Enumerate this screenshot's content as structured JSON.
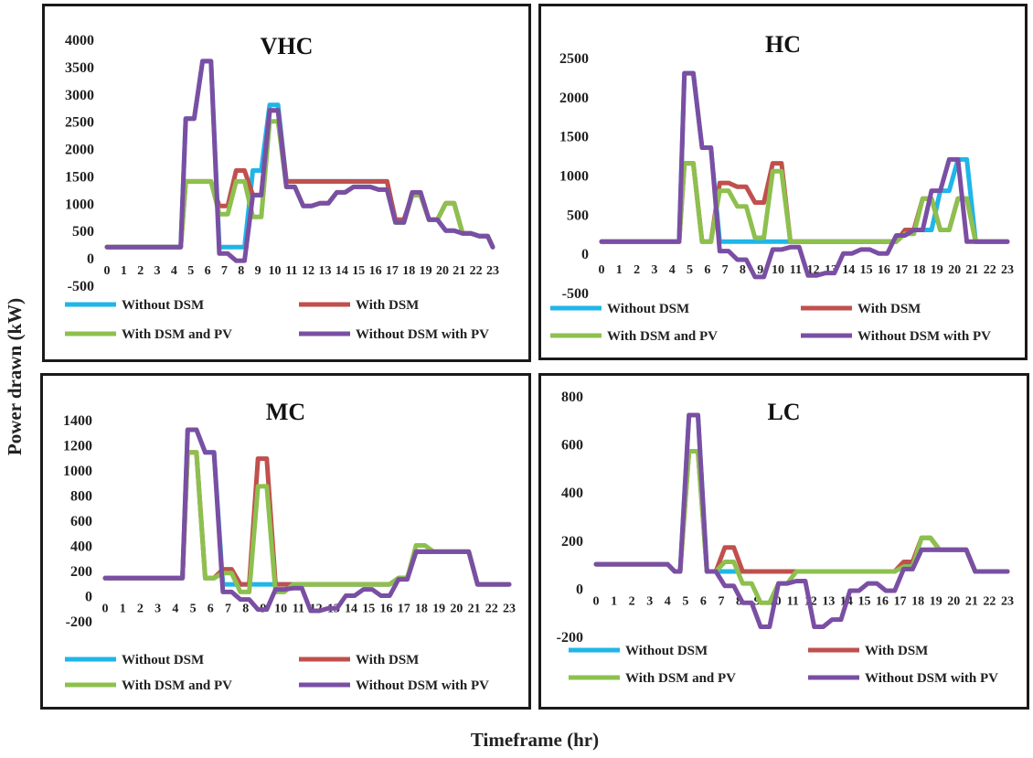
{
  "y_axis_title": "Power drawn (kW)",
  "x_axis_title": "Timeframe (hr)",
  "series_styles": [
    {
      "name": "Without DSM",
      "color": "#1fb6e8"
    },
    {
      "name": "With DSM",
      "color": "#c0504d"
    },
    {
      "name": "With DSM and PV",
      "color": "#8dc04e"
    },
    {
      "name": "Without DSM with PV",
      "color": "#7a4fa3"
    }
  ],
  "chart_data": [
    {
      "type": "line",
      "title": "VHC",
      "x": [
        0,
        1,
        2,
        3,
        4,
        4.4,
        4.7,
        5.2,
        5.7,
        6.2,
        6.7,
        7.2,
        7.7,
        8.2,
        8.7,
        9.2,
        9.7,
        10.2,
        10.7,
        11.2,
        11.7,
        12.2,
        12.7,
        13.2,
        13.7,
        14.2,
        14.7,
        15.2,
        15.7,
        16.2,
        16.7,
        17.2,
        17.7,
        18.2,
        18.7,
        19.2,
        19.7,
        20.2,
        20.7,
        21.2,
        21.7,
        22.2,
        22.7,
        23
      ],
      "x_ticks": [
        0,
        1,
        2,
        3,
        4,
        5,
        6,
        7,
        8,
        9,
        10,
        11,
        12,
        13,
        14,
        15,
        16,
        17,
        18,
        19,
        20,
        21,
        22,
        23
      ],
      "ylim": [
        -500,
        4000
      ],
      "y_ticks": [
        -500,
        0,
        500,
        1000,
        1500,
        2000,
        2500,
        3000,
        3500,
        4000
      ],
      "series": [
        {
          "name": "Without DSM",
          "values": [
            200,
            200,
            200,
            200,
            200,
            200,
            2550,
            2550,
            3600,
            3600,
            200,
            200,
            200,
            200,
            1600,
            1600,
            2800,
            2800,
            1400,
            1400,
            1400,
            1400,
            1400,
            1400,
            1400,
            1400,
            1400,
            1400,
            1400,
            1400,
            1400,
            650,
            650,
            1150,
            1150,
            700,
            700,
            500,
            500,
            450,
            450,
            400,
            400,
            200
          ]
        },
        {
          "name": "With DSM",
          "values": [
            200,
            200,
            200,
            200,
            200,
            200,
            1400,
            1400,
            1400,
            1400,
            950,
            950,
            1600,
            1600,
            1150,
            1150,
            2700,
            2700,
            1400,
            1400,
            1400,
            1400,
            1400,
            1400,
            1400,
            1400,
            1400,
            1400,
            1400,
            1400,
            1400,
            700,
            700,
            1150,
            1150,
            700,
            700,
            1000,
            1000,
            450,
            450,
            400,
            400,
            200
          ]
        },
        {
          "name": "With DSM and PV",
          "values": [
            200,
            200,
            200,
            200,
            200,
            200,
            1400,
            1400,
            1400,
            1400,
            800,
            800,
            1400,
            1400,
            750,
            750,
            2500,
            2500,
            1300,
            1300,
            950,
            950,
            1000,
            1000,
            1200,
            1200,
            1300,
            1300,
            1300,
            1250,
            1250,
            650,
            650,
            1150,
            1150,
            700,
            700,
            1000,
            1000,
            450,
            450,
            400,
            400,
            200
          ]
        },
        {
          "name": "Without DSM with PV",
          "values": [
            200,
            200,
            200,
            200,
            200,
            200,
            2550,
            2550,
            3600,
            3600,
            80,
            80,
            -50,
            -50,
            1150,
            1150,
            2700,
            2700,
            1300,
            1300,
            950,
            950,
            1000,
            1000,
            1200,
            1200,
            1300,
            1300,
            1300,
            1250,
            1250,
            650,
            650,
            1200,
            1200,
            700,
            700,
            500,
            500,
            450,
            450,
            400,
            400,
            200
          ]
        }
      ],
      "legend": [
        "Without DSM",
        "With DSM",
        "With DSM and PV",
        "Without DSM with PV"
      ]
    },
    {
      "type": "line",
      "title": "HC",
      "x": [
        0,
        1,
        2,
        3,
        4,
        4.4,
        4.7,
        5.2,
        5.7,
        6.2,
        6.7,
        7.2,
        7.7,
        8.2,
        8.7,
        9.2,
        9.7,
        10.2,
        10.7,
        11.2,
        11.7,
        12.2,
        12.7,
        13.2,
        13.7,
        14.2,
        14.7,
        15.2,
        15.7,
        16.2,
        16.7,
        17.2,
        17.7,
        18.2,
        18.7,
        19.2,
        19.7,
        20.2,
        20.7,
        21.2,
        21.7,
        22.2,
        22.7,
        23
      ],
      "x_ticks": [
        0,
        1,
        2,
        3,
        4,
        5,
        6,
        7,
        8,
        9,
        10,
        11,
        12,
        13,
        14,
        15,
        16,
        17,
        18,
        19,
        20,
        21,
        22,
        23
      ],
      "ylim": [
        -500,
        2500
      ],
      "y_ticks": [
        -500,
        0,
        500,
        1000,
        1500,
        2000,
        2500
      ],
      "series": [
        {
          "name": "Without DSM",
          "values": [
            150,
            150,
            150,
            150,
            150,
            150,
            2300,
            2300,
            1350,
            1350,
            150,
            150,
            150,
            150,
            150,
            150,
            150,
            150,
            150,
            150,
            150,
            150,
            150,
            150,
            150,
            150,
            150,
            150,
            150,
            150,
            150,
            300,
            300,
            300,
            300,
            800,
            800,
            1200,
            1200,
            150,
            150,
            150,
            150,
            150
          ]
        },
        {
          "name": "With DSM",
          "values": [
            150,
            150,
            150,
            150,
            150,
            150,
            1150,
            1150,
            150,
            150,
            900,
            900,
            850,
            850,
            650,
            650,
            1150,
            1150,
            150,
            150,
            150,
            150,
            150,
            150,
            150,
            150,
            150,
            150,
            150,
            150,
            150,
            300,
            300,
            700,
            700,
            300,
            300,
            700,
            700,
            150,
            150,
            150,
            150,
            150
          ]
        },
        {
          "name": "With DSM and PV",
          "values": [
            150,
            150,
            150,
            150,
            150,
            150,
            1150,
            1150,
            150,
            150,
            800,
            800,
            600,
            600,
            200,
            200,
            1050,
            1050,
            150,
            150,
            150,
            150,
            150,
            150,
            150,
            150,
            150,
            150,
            150,
            150,
            150,
            250,
            250,
            700,
            700,
            300,
            300,
            700,
            700,
            150,
            150,
            150,
            150,
            150
          ]
        },
        {
          "name": "Without DSM with PV",
          "values": [
            150,
            150,
            150,
            150,
            150,
            150,
            2300,
            2300,
            1350,
            1350,
            30,
            30,
            -80,
            -80,
            -300,
            -300,
            50,
            50,
            80,
            80,
            -280,
            -280,
            -250,
            -250,
            0,
            0,
            50,
            50,
            0,
            0,
            230,
            230,
            300,
            300,
            800,
            800,
            1200,
            1200,
            150,
            150,
            150,
            150,
            150,
            150
          ]
        }
      ],
      "legend": [
        "Without DSM",
        "With DSM",
        "With DSM and PV",
        "Without DSM with PV"
      ]
    },
    {
      "type": "line",
      "title": "MC",
      "x": [
        0,
        1,
        2,
        3,
        4,
        4.4,
        4.7,
        5.2,
        5.7,
        6.2,
        6.7,
        7.2,
        7.7,
        8.2,
        8.7,
        9.2,
        9.7,
        10.2,
        10.7,
        11.2,
        11.7,
        12.2,
        12.7,
        13.2,
        13.7,
        14.2,
        14.7,
        15.2,
        15.7,
        16.2,
        16.7,
        17.2,
        17.7,
        18.2,
        18.7,
        19.2,
        19.7,
        20.2,
        20.7,
        21.2,
        21.7,
        22.2,
        22.7,
        23
      ],
      "x_ticks": [
        0,
        1,
        2,
        3,
        4,
        5,
        6,
        7,
        8,
        9,
        10,
        11,
        12,
        13,
        14,
        15,
        16,
        17,
        18,
        19,
        20,
        21,
        22,
        23
      ],
      "ylim": [
        -200,
        1400
      ],
      "y_ticks": [
        -200,
        0,
        200,
        400,
        600,
        800,
        1000,
        1200,
        1400
      ],
      "series": [
        {
          "name": "Without DSM",
          "values": [
            140,
            140,
            140,
            140,
            140,
            140,
            1320,
            1320,
            1140,
            1140,
            90,
            90,
            90,
            90,
            90,
            90,
            90,
            90,
            90,
            90,
            90,
            90,
            90,
            90,
            90,
            90,
            90,
            90,
            90,
            90,
            140,
            140,
            350,
            350,
            350,
            350,
            350,
            350,
            350,
            90,
            90,
            90,
            90,
            90
          ]
        },
        {
          "name": "With DSM",
          "values": [
            140,
            140,
            140,
            140,
            140,
            140,
            1140,
            1140,
            140,
            140,
            210,
            210,
            90,
            90,
            1090,
            1090,
            90,
            90,
            90,
            90,
            90,
            90,
            90,
            90,
            90,
            90,
            90,
            90,
            90,
            90,
            140,
            140,
            350,
            350,
            350,
            350,
            350,
            350,
            350,
            90,
            90,
            90,
            90,
            90
          ]
        },
        {
          "name": "With DSM and PV",
          "values": [
            140,
            140,
            140,
            140,
            140,
            140,
            1140,
            1140,
            140,
            140,
            180,
            180,
            30,
            30,
            870,
            870,
            30,
            30,
            90,
            90,
            90,
            90,
            90,
            90,
            90,
            90,
            90,
            90,
            90,
            90,
            140,
            140,
            400,
            400,
            350,
            350,
            350,
            350,
            350,
            90,
            90,
            90,
            90,
            90
          ]
        },
        {
          "name": "Without DSM with PV",
          "values": [
            140,
            140,
            140,
            140,
            140,
            140,
            1320,
            1320,
            1140,
            1140,
            30,
            30,
            -30,
            -30,
            -110,
            -110,
            50,
            50,
            60,
            60,
            -120,
            -120,
            -100,
            -100,
            0,
            0,
            50,
            50,
            0,
            0,
            130,
            130,
            350,
            350,
            350,
            350,
            350,
            350,
            350,
            90,
            90,
            90,
            90,
            90
          ]
        }
      ],
      "legend": [
        "Without DSM",
        "With DSM",
        "With DSM and PV",
        "Without DSM with PV"
      ]
    },
    {
      "type": "line",
      "title": "LC",
      "x": [
        0,
        1,
        2,
        3,
        4,
        4.4,
        4.7,
        5.2,
        5.7,
        6.2,
        6.7,
        7.2,
        7.7,
        8.2,
        8.7,
        9.2,
        9.7,
        10.2,
        10.7,
        11.2,
        11.7,
        12.2,
        12.7,
        13.2,
        13.7,
        14.2,
        14.7,
        15.2,
        15.7,
        16.2,
        16.7,
        17.2,
        17.7,
        18.2,
        18.7,
        19.2,
        19.7,
        20.2,
        20.7,
        21.2,
        21.7,
        22.2,
        22.7,
        23
      ],
      "x_ticks": [
        0,
        1,
        2,
        3,
        4,
        5,
        6,
        7,
        8,
        9,
        10,
        11,
        12,
        13,
        14,
        15,
        16,
        17,
        18,
        19,
        20,
        21,
        22,
        23
      ],
      "ylim": [
        -200,
        800
      ],
      "y_ticks": [
        -200,
        0,
        200,
        400,
        600,
        800
      ],
      "series": [
        {
          "name": "Without DSM",
          "values": [
            100,
            100,
            100,
            100,
            100,
            70,
            70,
            720,
            720,
            70,
            70,
            70,
            70,
            70,
            70,
            70,
            70,
            70,
            70,
            70,
            70,
            70,
            70,
            70,
            70,
            70,
            70,
            70,
            70,
            70,
            70,
            100,
            100,
            160,
            160,
            160,
            160,
            160,
            160,
            70,
            70,
            70,
            70,
            70
          ]
        },
        {
          "name": "With DSM",
          "values": [
            100,
            100,
            100,
            100,
            100,
            70,
            70,
            570,
            570,
            70,
            70,
            170,
            170,
            70,
            70,
            70,
            70,
            70,
            70,
            70,
            70,
            70,
            70,
            70,
            70,
            70,
            70,
            70,
            70,
            70,
            70,
            110,
            110,
            210,
            210,
            160,
            160,
            160,
            160,
            70,
            70,
            70,
            70,
            70
          ]
        },
        {
          "name": "With DSM and PV",
          "values": [
            100,
            100,
            100,
            100,
            100,
            70,
            70,
            570,
            570,
            70,
            70,
            110,
            110,
            20,
            20,
            -60,
            -60,
            20,
            20,
            70,
            70,
            70,
            70,
            70,
            70,
            70,
            70,
            70,
            70,
            70,
            70,
            90,
            90,
            210,
            210,
            160,
            160,
            160,
            160,
            70,
            70,
            70,
            70,
            70
          ]
        },
        {
          "name": "Without DSM with PV",
          "values": [
            100,
            100,
            100,
            100,
            100,
            70,
            70,
            720,
            720,
            70,
            70,
            10,
            10,
            -60,
            -60,
            -160,
            -160,
            20,
            20,
            30,
            30,
            -160,
            -160,
            -130,
            -130,
            -10,
            -10,
            20,
            20,
            -10,
            -10,
            80,
            80,
            160,
            160,
            160,
            160,
            160,
            160,
            70,
            70,
            70,
            70,
            70
          ]
        }
      ],
      "legend": [
        "Without DSM",
        "With DSM",
        "With DSM and PV",
        "Without DSM with PV"
      ]
    }
  ]
}
